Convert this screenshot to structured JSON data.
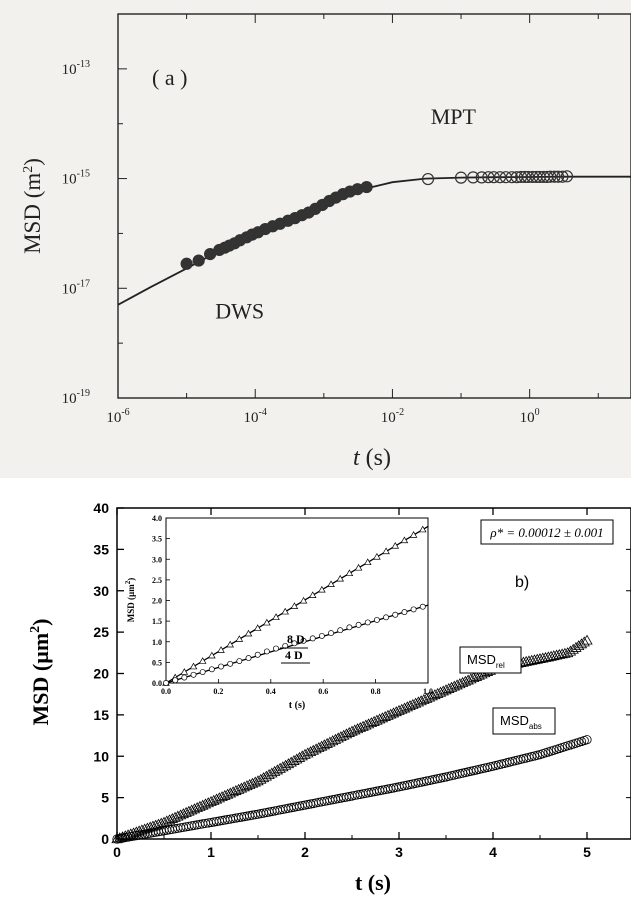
{
  "chart_data": [
    {
      "panel": "a",
      "type": "scatter",
      "panel_label": "( a )",
      "xlabel_italic": "t",
      "xlabel_unit": "(s)",
      "ylabel_text": "MSD (m",
      "ylabel_sup": "2",
      "ylabel_close": ")",
      "x_scale": "log",
      "y_scale": "log",
      "xlim": [
        1e-06,
        30
      ],
      "ylim": [
        1e-19,
        1e-12
      ],
      "x_tick_labels": [
        {
          "value": 1e-06,
          "base": "10",
          "exp": "-6"
        },
        {
          "value": 0.0001,
          "base": "10",
          "exp": "-4"
        },
        {
          "value": 0.01,
          "base": "10",
          "exp": "-2"
        },
        {
          "value": 1,
          "base": "10",
          "exp": "0"
        }
      ],
      "y_tick_labels": [
        {
          "value": 1e-19,
          "base": "10",
          "exp": "-19"
        },
        {
          "value": 1e-17,
          "base": "10",
          "exp": "-17"
        },
        {
          "value": 1e-15,
          "base": "10",
          "exp": "-15"
        },
        {
          "value": 1e-13,
          "base": "10",
          "exp": "-13"
        }
      ],
      "annotations": [
        {
          "text": "DWS",
          "x": 0.0001,
          "y": 6e-18
        },
        {
          "text": "MPT",
          "x": 0.04,
          "y": 6e-15
        }
      ],
      "series": [
        {
          "label": "DWS",
          "marker": "filled-circle",
          "x": [
            1e-05,
            1.5e-05,
            2.2e-05,
            3e-05,
            3.6e-05,
            4.2e-05,
            5e-05,
            6e-05,
            7.5e-05,
            9e-05,
            0.00011,
            0.00014,
            0.00018,
            0.00023,
            0.0003,
            0.00038,
            0.00048,
            0.0006,
            0.00075,
            0.00095,
            0.0012,
            0.0015,
            0.0019,
            0.0024,
            0.0031,
            0.0042
          ],
          "y": [
            2.8e-17,
            3.2e-17,
            4.2e-17,
            5e-17,
            5.5e-17,
            6e-17,
            6.6e-17,
            7.5e-17,
            8.5e-17,
            9.5e-17,
            1.05e-16,
            1.2e-16,
            1.35e-16,
            1.5e-16,
            1.7e-16,
            1.9e-16,
            2.15e-16,
            2.4e-16,
            2.8e-16,
            3.3e-16,
            3.9e-16,
            4.5e-16,
            5.2e-16,
            5.8e-16,
            6.4e-16,
            7e-16
          ]
        },
        {
          "label": "MPT",
          "marker": "open-circle",
          "x": [
            0.033,
            0.1,
            0.15,
            0.2,
            0.25,
            0.3,
            0.37,
            0.45,
            0.55,
            0.65,
            0.75,
            0.85,
            0.95,
            1.1,
            1.25,
            1.4,
            1.6,
            1.8,
            2.0,
            2.3,
            2.6,
            3.0,
            3.5
          ],
          "y": [
            9.8e-16,
            1.04e-15,
            1.05e-15,
            1.05e-15,
            1.06e-15,
            1.06e-15,
            1.06e-15,
            1.06e-15,
            1.06e-15,
            1.06e-15,
            1.07e-15,
            1.07e-15,
            1.07e-15,
            1.07e-15,
            1.07e-15,
            1.07e-15,
            1.07e-15,
            1.07e-15,
            1.08e-15,
            1.08e-15,
            1.08e-15,
            1.08e-15,
            1.1e-15
          ]
        },
        {
          "label": "fit",
          "marker": "line",
          "x": [
            1e-06,
            3e-06,
            1e-05,
            3e-05,
            0.0001,
            0.0003,
            0.001,
            0.003,
            0.01,
            0.03,
            0.1,
            0.3,
            1,
            3,
            10,
            30
          ],
          "y": [
            5e-18,
            1.05e-17,
            2.3e-17,
            4.8e-17,
            1e-16,
            1.9e-16,
            3.7e-16,
            6e-16,
            8.6e-16,
            1e-15,
            1.04e-15,
            1.06e-15,
            1.07e-15,
            1.08e-15,
            1.08e-15,
            1.08e-15
          ]
        }
      ]
    },
    {
      "panel": "b",
      "type": "scatter",
      "panel_label": "b)",
      "xlabel": "t (s)",
      "ylabel_text": "MSD (µm",
      "ylabel_sup": "2",
      "ylabel_close": ")",
      "xlim": [
        0,
        5.5
      ],
      "ylim": [
        0,
        40
      ],
      "x_ticks": [
        0,
        1,
        2,
        3,
        4,
        5
      ],
      "y_ticks": [
        0,
        5,
        10,
        15,
        20,
        25,
        30,
        35,
        40
      ],
      "rho_label": "ρ* = 0.00012 ± 0.001",
      "series": [
        {
          "label_main": "MSD",
          "label_sub": "rel",
          "marker": "open-triangle",
          "x": [
            0,
            0.5,
            1.0,
            1.5,
            2.0,
            2.5,
            3.0,
            3.5,
            4.0,
            4.3,
            4.6,
            4.8,
            5.0
          ],
          "y": [
            0,
            2.0,
            4.5,
            7.0,
            10.2,
            13.0,
            15.5,
            18.0,
            20.5,
            21.3,
            22.0,
            22.5,
            24
          ]
        },
        {
          "label_main": "MSD",
          "label_sub": "abs",
          "marker": "open-circle",
          "x": [
            0,
            0.5,
            1.0,
            1.5,
            2.0,
            2.5,
            3.0,
            3.5,
            4.0,
            4.5,
            5.0
          ],
          "y": [
            0,
            1.0,
            2.0,
            3.0,
            4.1,
            5.2,
            6.3,
            7.5,
            8.8,
            10.2,
            12
          ]
        }
      ],
      "inset": {
        "type": "scatter",
        "xlabel": "t (s)",
        "ylabel_text": "MSD (µm",
        "ylabel_sup": "2",
        "ylabel_close": ")",
        "xlim": [
          0,
          1.0
        ],
        "ylim": [
          0,
          4.0
        ],
        "x_ticks": [
          "0.0",
          "0.2",
          "0.4",
          "0.6",
          "0.8",
          "1.0"
        ],
        "y_ticks": [
          "0.0",
          "0.5",
          "1.0",
          "1.5",
          "2.0",
          "2.5",
          "3.0",
          "3.5",
          "4.0"
        ],
        "annotations": [
          "8 D",
          "4 D"
        ],
        "series": [
          {
            "label": "8 D",
            "marker": "open-triangle",
            "x": [
              0,
              0.1,
              0.2,
              0.3,
              0.4,
              0.5,
              0.6,
              0.7,
              0.8,
              0.9,
              0.98
            ],
            "y": [
              0,
              0.38,
              0.76,
              1.14,
              1.52,
              1.9,
              2.28,
              2.66,
              3.04,
              3.42,
              3.72
            ]
          },
          {
            "label": "4 D",
            "marker": "open-circle",
            "x": [
              0,
              0.1,
              0.2,
              0.3,
              0.4,
              0.5,
              0.6,
              0.7,
              0.8,
              0.9,
              0.98
            ],
            "y": [
              0,
              0.19,
              0.38,
              0.57,
              0.8,
              0.98,
              1.15,
              1.35,
              1.52,
              1.7,
              1.85
            ]
          }
        ]
      }
    }
  ]
}
